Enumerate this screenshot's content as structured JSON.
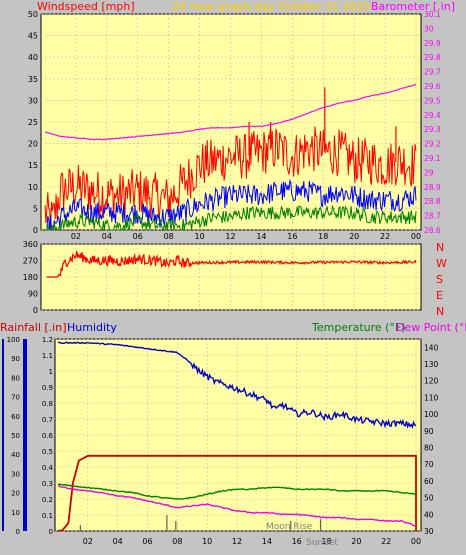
{
  "colors": {
    "background": "#c4c4c4",
    "plot_bg": "#ffffa6",
    "grid": "#e0b0b0",
    "wind_gust": "#ff0000",
    "wind_avg": "#0000ff",
    "wind_min": "#008000",
    "barometer": "#ff00ff",
    "direction": "#ff0000",
    "rainfall": "#cc0000",
    "humidity": "#0000c8",
    "temperature": "#008000",
    "dew_point": "#ee00ee",
    "title": "#ffd000"
  },
  "header": {
    "left_label": "Windspeed [mph]",
    "title": "24 hour graph day   October 31 2025",
    "right_label": "Barometer [.in]"
  },
  "panel3_header": {
    "rain_label": "Rainfall [.in]",
    "humidity_label": "Humidity",
    "temp_label": "Temperature (°F)",
    "dew_label": "Dew Point (°F)"
  },
  "annotations": {
    "moon_rise": "Moon Rise",
    "sun_set": "SunSet"
  },
  "chart_data": [
    {
      "type": "line",
      "title": "24 hour graph day   October 31 2025",
      "x_ticks": [
        "02",
        "04",
        "06",
        "08",
        "10",
        "12",
        "14",
        "16",
        "18",
        "20",
        "22",
        "00"
      ],
      "y_left_ticks": [
        "0",
        "5",
        "10",
        "15",
        "20",
        "25",
        "30",
        "35",
        "40",
        "45",
        "50"
      ],
      "y_right_ticks": [
        "28.6",
        "28.7",
        "28.8",
        "28.9",
        "29",
        "29.1",
        "29.2",
        "29.3",
        "29.4",
        "29.5",
        "29.6",
        "29.7",
        "29.8",
        "29.9",
        "30",
        "30.1"
      ],
      "ylim_left": [
        0,
        50
      ],
      "ylim_right": [
        28.6,
        30.1
      ],
      "grid": true,
      "series": [
        {
          "name": "Windspeed [mph]",
          "role": "gust",
          "x": [
            0,
            0.5,
            1,
            2,
            3,
            4,
            5,
            6,
            7,
            8,
            9,
            10,
            11,
            12,
            13,
            14,
            15,
            16,
            17,
            18,
            19,
            20,
            21,
            22,
            23,
            24
          ],
          "values": [
            4,
            2,
            9,
            10,
            9,
            8,
            8,
            9,
            8,
            7,
            11,
            15,
            16,
            17,
            17,
            18,
            19,
            17,
            19,
            18,
            18,
            16,
            16,
            15,
            16,
            15
          ]
        },
        {
          "role": "average",
          "x": [
            0,
            0.5,
            1,
            2,
            3,
            4,
            5,
            6,
            7,
            8,
            9,
            10,
            11,
            12,
            13,
            14,
            15,
            16,
            17,
            18,
            19,
            20,
            21,
            22,
            23,
            24
          ],
          "values": [
            1,
            1,
            3,
            5,
            4,
            4,
            4,
            4,
            3,
            3,
            4,
            6,
            7,
            8,
            8,
            8,
            9,
            9,
            9,
            8,
            9,
            8,
            7,
            7,
            7,
            8
          ]
        },
        {
          "role": "minimum",
          "x": [
            0,
            0.5,
            1,
            2,
            3,
            4,
            5,
            6,
            7,
            8,
            9,
            10,
            11,
            12,
            13,
            14,
            15,
            16,
            17,
            18,
            19,
            20,
            21,
            22,
            23,
            24
          ],
          "values": [
            0,
            0,
            1,
            2,
            2,
            1,
            1,
            2,
            1,
            1,
            1,
            2,
            3,
            3,
            4,
            4,
            4,
            4,
            4,
            4,
            4,
            4,
            3,
            3,
            3,
            3
          ]
        },
        {
          "name": "Barometer [.in]",
          "axis": "right",
          "x": [
            0,
            1,
            2,
            3,
            4,
            5,
            6,
            7,
            8,
            9,
            10,
            11,
            12,
            13,
            14,
            15,
            16,
            17,
            18,
            19,
            20,
            21,
            22,
            23,
            24
          ],
          "values": [
            29.28,
            29.25,
            29.24,
            29.23,
            29.23,
            29.24,
            29.25,
            29.26,
            29.27,
            29.28,
            29.3,
            29.31,
            29.31,
            29.32,
            29.32,
            29.34,
            29.37,
            29.41,
            29.45,
            29.48,
            29.5,
            29.53,
            29.55,
            29.58,
            29.61
          ]
        }
      ],
      "peaks": [
        {
          "x": 18.1,
          "value": 33
        },
        {
          "x": 13.2,
          "value": 25
        },
        {
          "x": 14.6,
          "value": 25
        },
        {
          "x": 22.7,
          "value": 24
        }
      ]
    },
    {
      "type": "line",
      "title": "",
      "y_ticks": [
        "360",
        "270",
        "180",
        "90",
        "0"
      ],
      "y_right_labels": [
        "N",
        "W",
        "S",
        "E",
        "N"
      ],
      "ylim": [
        0,
        360
      ],
      "grid": true,
      "series": [
        {
          "x": [
            0.1,
            0.8,
            1.0,
            1.3,
            2,
            3,
            4,
            5,
            6,
            7,
            8,
            8.5,
            9,
            10,
            12,
            14,
            16,
            18,
            20,
            22,
            24
          ],
          "values": [
            180,
            180,
            200,
            260,
            300,
            270,
            270,
            265,
            280,
            270,
            250,
            270,
            255,
            258,
            260,
            262,
            258,
            260,
            262,
            258,
            262
          ]
        }
      ]
    },
    {
      "type": "line",
      "title": "",
      "x_ticks": [
        "02",
        "04",
        "06",
        "08",
        "10",
        "12",
        "14",
        "16",
        "18",
        "20",
        "22",
        "00"
      ],
      "y_humidity_ticks": [
        "0",
        "10",
        "20",
        "30",
        "40",
        "50",
        "60",
        "70",
        "80",
        "90",
        "100"
      ],
      "y_rain_ticks": [
        "0",
        "0.1",
        "0.2",
        "0.3",
        "0.4",
        "0.5",
        "0.6",
        "0.7",
        "0.8",
        "0.9",
        "1",
        "1.1",
        "1.2"
      ],
      "y_temp_ticks": [
        "30",
        "40",
        "50",
        "60",
        "70",
        "80",
        "90",
        "100",
        "110",
        "120",
        "130",
        "140"
      ],
      "ylim_humidity": [
        0,
        100
      ],
      "ylim_rain": [
        0,
        1.2
      ],
      "ylim_temp": [
        30,
        145
      ],
      "grid": true,
      "series": [
        {
          "name": "Rainfall [.in]",
          "axis": "rain",
          "x": [
            0,
            0.3,
            0.7,
            1.0,
            1.4,
            2,
            24
          ],
          "values": [
            0,
            0.005,
            0.05,
            0.3,
            0.44,
            0.47,
            0.47
          ]
        },
        {
          "name": "Humidity",
          "axis": "humidity",
          "x": [
            0,
            2,
            4,
            6,
            7,
            8,
            8.8,
            9.5,
            10.5,
            12,
            13,
            14,
            14.6,
            15,
            16,
            17,
            18,
            19,
            20,
            21,
            22,
            23,
            24
          ],
          "values": [
            98,
            98,
            97,
            95,
            94,
            93,
            88,
            83,
            78,
            74,
            71,
            68,
            63,
            66,
            61,
            62,
            59,
            61,
            58,
            57,
            56,
            56,
            55
          ]
        },
        {
          "name": "Temperature (°F)",
          "axis": "temp",
          "x": [
            0,
            1,
            2,
            3,
            4,
            5,
            6,
            7,
            8,
            9,
            10,
            11,
            12,
            13,
            14,
            15,
            16,
            17,
            18,
            19,
            20,
            21,
            22,
            23,
            24
          ],
          "values": [
            58,
            57,
            56,
            55,
            54,
            53,
            51,
            50,
            49,
            50,
            52,
            54,
            55,
            55,
            56,
            56,
            55,
            55,
            55,
            54,
            54,
            54,
            54,
            53,
            52
          ]
        },
        {
          "name": "Dew Point (°F)",
          "axis": "temp",
          "x": [
            0,
            1,
            2,
            3,
            4,
            5,
            6,
            7,
            8,
            9,
            10,
            11,
            12,
            13,
            14,
            15,
            16,
            17,
            18,
            19,
            20,
            21,
            22,
            23,
            24
          ],
          "values": [
            57,
            55,
            54,
            53,
            51,
            50,
            48,
            46,
            44,
            45,
            46,
            44,
            42,
            41,
            41,
            40,
            40,
            39,
            38,
            38,
            37,
            37,
            36,
            36,
            33
          ]
        }
      ]
    }
  ]
}
